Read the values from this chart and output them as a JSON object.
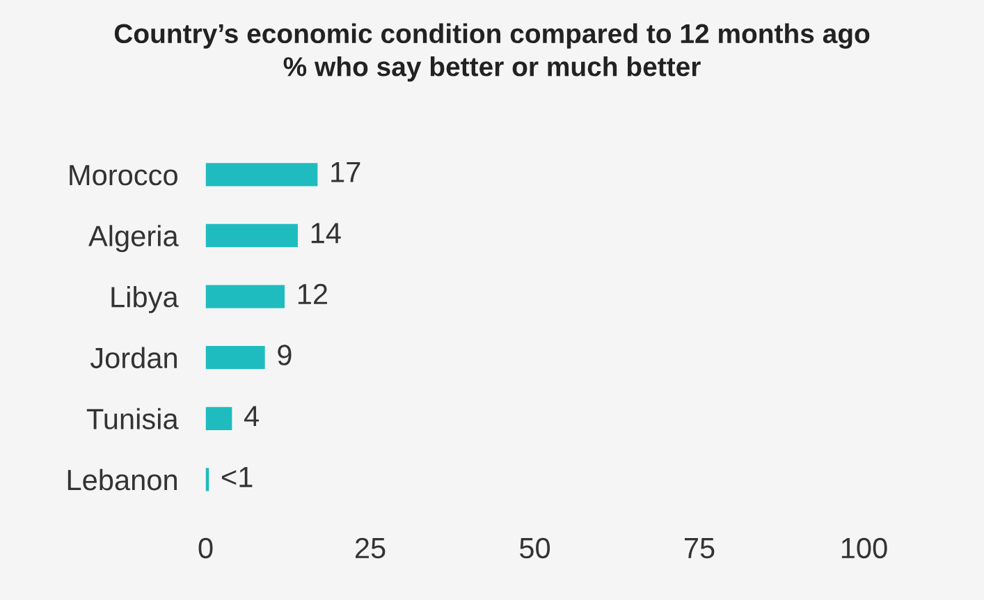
{
  "chart_data": {
    "type": "bar",
    "orientation": "horizontal",
    "title": "Country’s economic condition compared to 12 months ago",
    "subtitle": "% who say better or much better",
    "categories": [
      "Morocco",
      "Algeria",
      "Libya",
      "Jordan",
      "Tunisia",
      "Lebanon"
    ],
    "values": [
      17,
      14,
      12,
      9,
      4,
      0.5
    ],
    "value_labels": [
      "17",
      "14",
      "12",
      "9",
      "4",
      "<1"
    ],
    "color": "#1fbcbf",
    "xlim": [
      0,
      100
    ],
    "xticks": [
      0,
      25,
      50,
      75,
      100
    ],
    "grid": false,
    "legend": false
  }
}
